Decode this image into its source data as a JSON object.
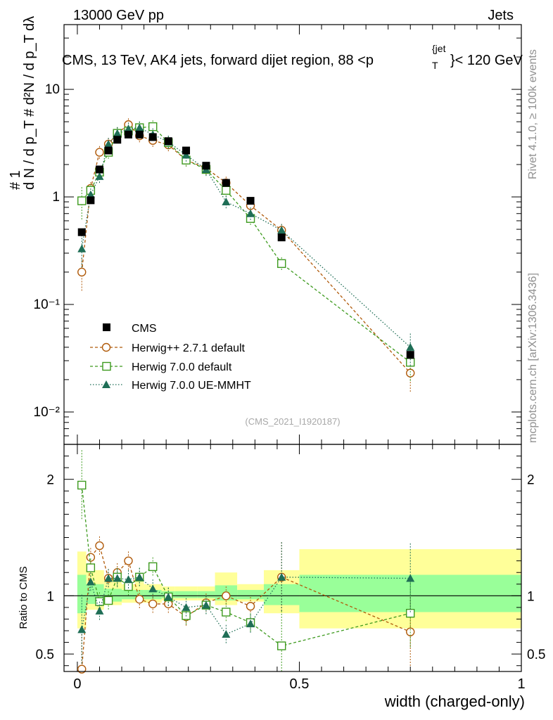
{
  "header": {
    "left": "13000 GeV pp",
    "right": "Jets",
    "title": "CMS, 13 TeV, AK4 jets, forward dijet region, 88 <p",
    "title_sup": "{jet",
    "title_sub": "T",
    "title_tail": "}< 120 GeV",
    "watermark": "(CMS_2021_I1920187)",
    "side_top": "Rivet 4.1.0, ≥ 100k events",
    "side_bottom": "mcplots.cern.ch [arXiv:1306.3436]"
  },
  "colors": {
    "cms": "#000000",
    "herwigpp": "#b05a0a",
    "herwig700": "#3d9a1e",
    "ueMMHT": "#1f6e56",
    "band_outer": "#ffff99",
    "band_inner": "#99ff99"
  },
  "chart_data": [
    {
      "type": "scatter",
      "panel": "main",
      "xlabel": "width (charged-only)",
      "ylabel_top": "# 1",
      "ylabel": "d N / d p_T  # d²N / d p_T dλ",
      "yscale": "log",
      "xlim": [
        -0.03,
        1.0
      ],
      "ylim": [
        0.005,
        40
      ],
      "ytick_labels": [
        "10⁻²",
        "10⁻¹",
        "1",
        "10"
      ],
      "ytick_values": [
        0.01,
        0.1,
        1,
        10
      ],
      "x": [
        0.01,
        0.03,
        0.05,
        0.07,
        0.09,
        0.115,
        0.14,
        0.17,
        0.205,
        0.245,
        0.29,
        0.335,
        0.39,
        0.46,
        0.75
      ],
      "series": [
        {
          "name": "CMS",
          "marker": "square-filled",
          "values": [
            0.47,
            0.93,
            1.8,
            2.7,
            3.4,
            3.8,
            3.8,
            3.6,
            3.3,
            2.7,
            1.95,
            1.35,
            0.92,
            0.42,
            0.034
          ]
        },
        {
          "name": "Herwig++ 2.7.1 default",
          "marker": "circle-open",
          "line": "dashed",
          "values": [
            0.2,
            1.2,
            2.6,
            3.1,
            3.9,
            4.7,
            3.7,
            3.35,
            3.05,
            2.2,
            1.85,
            1.35,
            0.83,
            0.49,
            0.023
          ]
        },
        {
          "name": "Herwig 7.0.0 default",
          "marker": "square-open",
          "line": "dashed",
          "values": [
            0.92,
            1.15,
            1.7,
            2.6,
            3.9,
            4.1,
            4.4,
            4.5,
            3.2,
            2.2,
            1.8,
            1.15,
            0.63,
            0.24,
            0.029
          ]
        },
        {
          "name": "Herwig 7.0.0 UE-MMHT",
          "marker": "triangle-filled",
          "line": "dotted",
          "values": [
            0.33,
            1.05,
            1.55,
            3.1,
            3.9,
            4.3,
            4.4,
            3.8,
            3.25,
            2.45,
            1.8,
            0.9,
            0.7,
            0.49,
            0.04
          ]
        }
      ]
    },
    {
      "type": "scatter",
      "panel": "ratio",
      "xlabel": "width (charged-only)",
      "ylabel": "Ratio to CMS",
      "xlim": [
        -0.03,
        1.0
      ],
      "ylim": [
        0.35,
        2.3
      ],
      "ytick_labels": [
        "0.5",
        "1",
        "2"
      ],
      "ytick_values": [
        0.5,
        1,
        2
      ],
      "xtick_labels": [
        "0",
        "0.5",
        "1"
      ],
      "xtick_values": [
        0,
        0.5,
        1
      ],
      "x": [
        0.01,
        0.03,
        0.05,
        0.07,
        0.09,
        0.115,
        0.14,
        0.17,
        0.205,
        0.245,
        0.29,
        0.335,
        0.39,
        0.46,
        0.75
      ],
      "bands": {
        "edges": [
          0.0,
          0.02,
          0.04,
          0.06,
          0.08,
          0.1,
          0.13,
          0.15,
          0.19,
          0.22,
          0.27,
          0.31,
          0.36,
          0.42,
          0.5,
          1.0
        ],
        "outer_lo": [
          0.72,
          0.88,
          0.88,
          0.92,
          0.92,
          0.94,
          0.94,
          0.94,
          0.96,
          0.96,
          0.96,
          0.92,
          0.95,
          0.85,
          0.72
        ],
        "outer_hi": [
          1.38,
          1.22,
          1.22,
          1.14,
          1.12,
          1.1,
          1.12,
          1.1,
          1.08,
          1.08,
          1.08,
          1.2,
          1.1,
          1.22,
          1.4
        ],
        "inner_lo": [
          0.85,
          0.93,
          0.93,
          0.95,
          0.95,
          0.97,
          0.97,
          0.97,
          0.98,
          0.98,
          0.98,
          0.96,
          0.97,
          0.92,
          0.86
        ],
        "inner_hi": [
          1.18,
          1.1,
          1.1,
          1.06,
          1.06,
          1.05,
          1.05,
          1.05,
          1.04,
          1.04,
          1.04,
          1.09,
          1.05,
          1.1,
          1.18
        ]
      },
      "series": [
        {
          "name": "Herwig++ 2.7.1 default",
          "values": [
            0.37,
            1.33,
            1.43,
            1.15,
            1.2,
            1.3,
            0.97,
            0.93,
            0.93,
            0.82,
            0.94,
            1.0,
            0.91,
            1.16,
            0.69
          ]
        },
        {
          "name": "Herwig 7.0.0 default",
          "values": [
            1.95,
            1.24,
            0.95,
            0.96,
            1.16,
            1.08,
            1.16,
            1.25,
            0.99,
            0.83,
            0.92,
            0.86,
            0.77,
            0.57,
            0.85
          ]
        },
        {
          "name": "Herwig 7.0.0 UE-MMHT",
          "values": [
            0.71,
            1.12,
            0.87,
            1.15,
            1.15,
            1.14,
            1.16,
            1.06,
            0.99,
            0.9,
            0.92,
            0.67,
            0.76,
            1.16,
            1.15
          ]
        }
      ]
    }
  ]
}
